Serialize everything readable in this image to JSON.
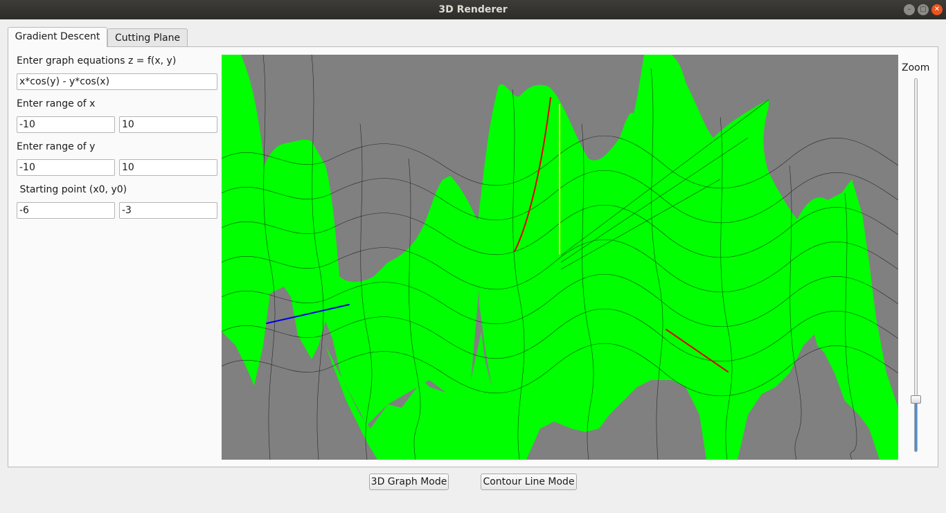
{
  "window": {
    "title": "3D Renderer"
  },
  "tabs": [
    {
      "label": "Gradient Descent",
      "active": true
    },
    {
      "label": "Cutting Plane",
      "active": false
    }
  ],
  "form": {
    "equation_label": "Enter graph equations z = f(x, y)",
    "equation_value": "x*cos(y) - y*cos(x)",
    "x_range_label": "Enter range of x",
    "x_min": "-10",
    "x_max": "10",
    "y_range_label": "Enter range of y",
    "y_min": "-10",
    "y_max": "10",
    "start_label": " Starting point (x0, y0)",
    "x0": "-6",
    "y0": "-3"
  },
  "zoom": {
    "label": "Zoom",
    "level": 0.14
  },
  "buttons": {
    "graph_mode": "3D Graph Mode",
    "contour_mode": "Contour Line Mode"
  },
  "colors": {
    "surface": "#00ff00",
    "background": "#808080",
    "path": "#e00000",
    "axis_yellow": "#ffff00",
    "axis_blue": "#0000e0",
    "accent": "#4f8fcf"
  }
}
